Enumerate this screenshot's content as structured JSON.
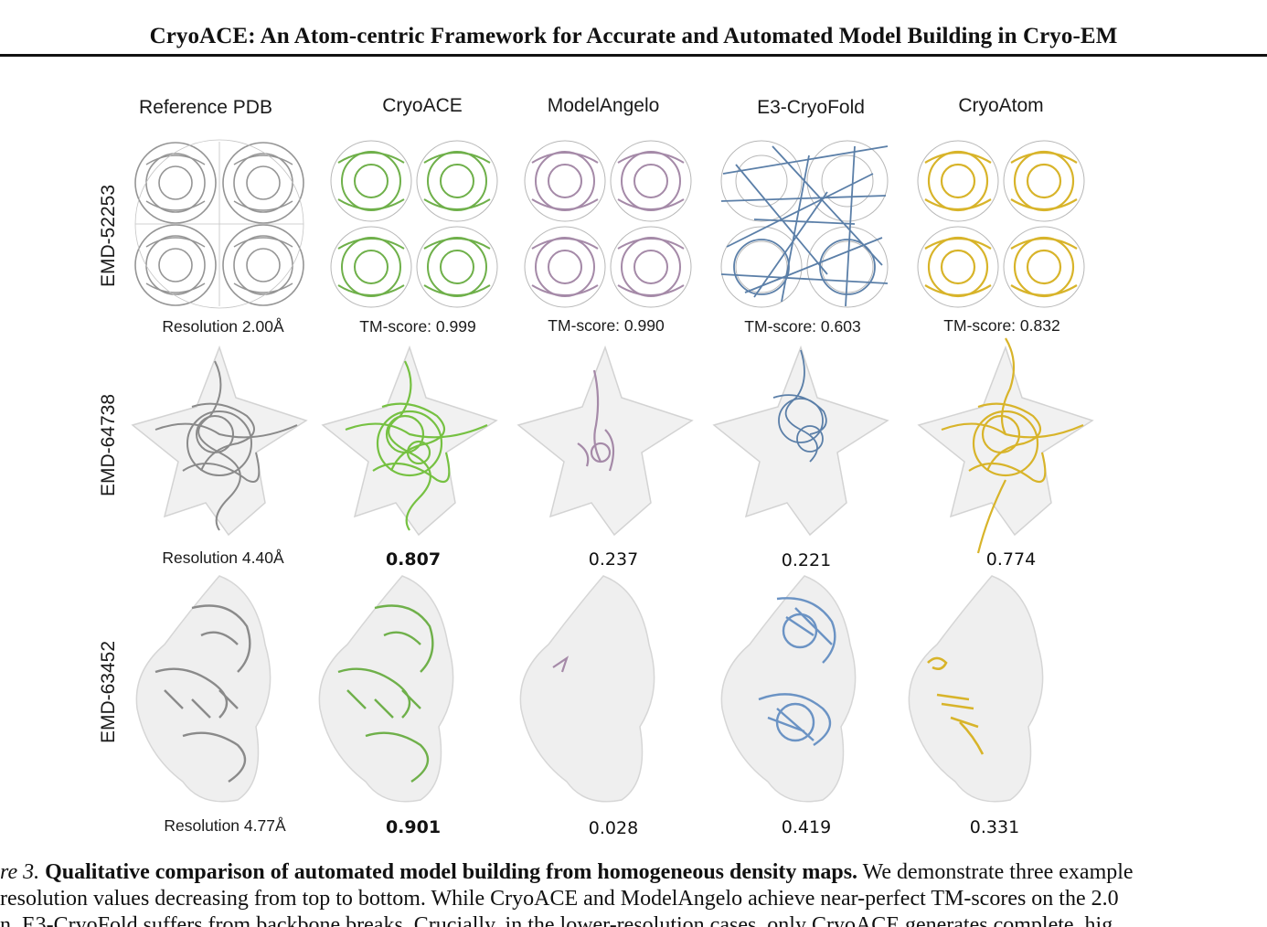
{
  "header": {
    "title": "CryoACE: An Atom-centric Framework for Accurate and Automated Model Building in Cryo-EM"
  },
  "columns": [
    "Reference PDB",
    "CryoACE",
    "ModelAngelo",
    "E3-CryoFold",
    "CryoAtom"
  ],
  "rows": [
    {
      "id": "EMD-52253",
      "resolution": "Resolution 2.00Å",
      "scores": [
        "TM-score: 0.999",
        "TM-score: 0.990",
        "TM-score: 0.603",
        "TM-score: 0.832"
      ]
    },
    {
      "id": "EMD-64738",
      "resolution": "Resolution 4.40Å",
      "scores": [
        "0.807",
        "0.237",
        "0.221",
        "0.774"
      ]
    },
    {
      "id": "EMD-63452",
      "resolution": "Resolution 4.77Å",
      "scores": [
        "0.901",
        "0.028",
        "0.419",
        "0.331"
      ]
    }
  ],
  "colors": {
    "reference": "#8a8a8a",
    "cryoace": "#6fb04a",
    "modelangelo": "#a58aa8",
    "e3cryofold": "#5b7fa8",
    "cryoatom": "#d8b42a"
  },
  "caption": {
    "label": "re 3.",
    "title": "Qualitative comparison of automated model building from homogeneous density maps.",
    "line1_rest": "We demonstrate three example",
    "line2": "resolution values decreasing from top to bottom. While CryoACE and ModelAngelo achieve near-perfect TM-scores on the 2.0",
    "line3": "n, E3-CryoFold suffers from backbone breaks. Crucially, in the lower-resolution cases, only CryoACE generates complete, hig"
  }
}
